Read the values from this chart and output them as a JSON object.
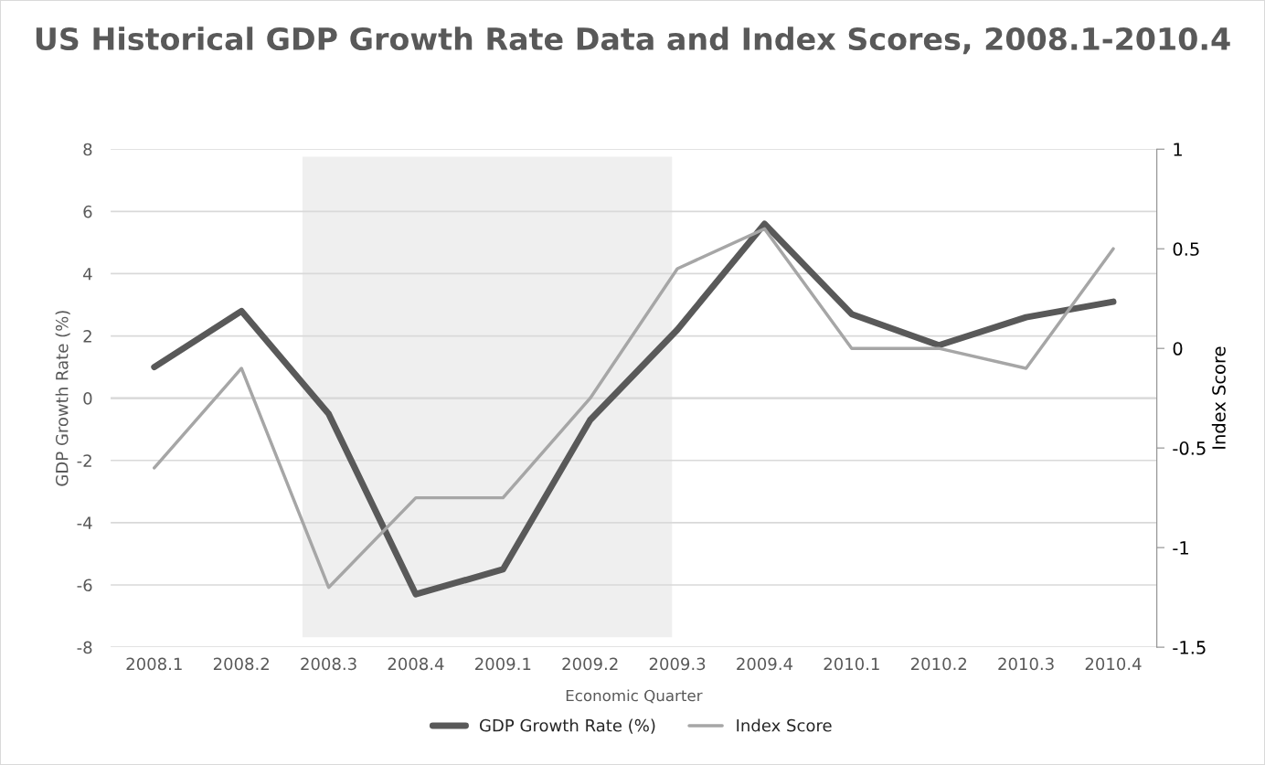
{
  "chart_data": {
    "type": "line",
    "title": "US Historical GDP Growth Rate Data and Index Scores, 2008.1-2010.4",
    "xlabel": "Economic Quarter",
    "ylabel": "GDP Growth Rate (%)",
    "y2label": "Index Score",
    "categories": [
      "2008.1",
      "2008.2",
      "2008.3",
      "2008.4",
      "2009.1",
      "2009.2",
      "2009.3",
      "2009.4",
      "2010.1",
      "2010.2",
      "2010.3",
      "2010.4"
    ],
    "series": [
      {
        "name": "GDP Growth Rate (%)",
        "color": "#595959",
        "values": [
          1.0,
          2.8,
          -0.5,
          -6.3,
          -5.5,
          -0.7,
          2.2,
          5.6,
          2.7,
          1.7,
          2.6,
          3.1
        ]
      },
      {
        "name": "Index Score",
        "color": "#a6a6a6",
        "axis": "y2",
        "values": [
          -0.6,
          -0.1,
          -1.2,
          -0.75,
          -0.75,
          -0.25,
          0.4,
          0.6,
          0,
          0,
          -0.1,
          0.5
        ]
      }
    ],
    "ylim": [
      -8,
      8
    ],
    "yticks": [
      -8,
      -6,
      -4,
      -2,
      0,
      2,
      4,
      6,
      8
    ],
    "y2lim": [
      -1.5,
      1
    ],
    "y2ticks": [
      -1.5,
      -1,
      -0.5,
      0,
      0.5,
      1
    ],
    "bands": [
      {
        "axis": "x",
        "from": "2008.3",
        "to": "2009.3",
        "color": "#efefef"
      }
    ],
    "grid": "y",
    "legend": "bottom",
    "marker": "none",
    "line_style": "solid"
  }
}
